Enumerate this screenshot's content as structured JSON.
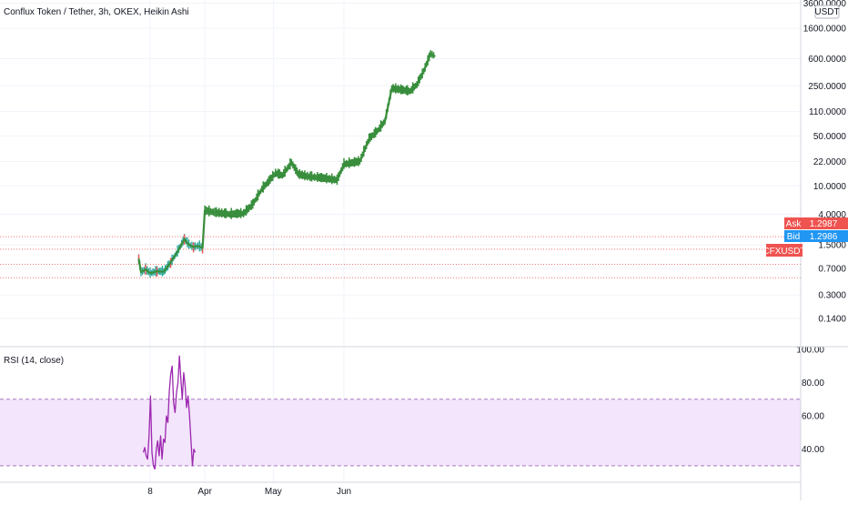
{
  "chart_data": {
    "type": "candlestick",
    "title": "Conflux Token / Tether, 3h, OKEX, Heikin Ashi",
    "symbol": "CFXUSDT",
    "currency_label": "USDT",
    "price_axis": {
      "scale": "log",
      "ticks": [
        "3600.0000",
        "1600.0000",
        "600.0000",
        "250.0000",
        "110.0000",
        "50.0000",
        "22.0000",
        "10.0000",
        "4.0000",
        "1.5000",
        "0.7000",
        "0.3000",
        "0.1400"
      ],
      "tick_values": [
        3600,
        1600,
        600,
        250,
        110,
        50,
        22,
        10,
        4,
        1.5,
        0.7,
        0.3,
        0.14
      ]
    },
    "time_axis": {
      "ticks": [
        "8",
        "Apr",
        "May",
        "Jun"
      ]
    },
    "ask": {
      "label": "Ask",
      "value": "1.2987",
      "color": "#ef5350"
    },
    "bid": {
      "label": "Bid",
      "value": "1.2986",
      "color": "#2196f3"
    },
    "last_price_color": "#ef5350",
    "up_color": "#26a69a",
    "trend_color": "#388e3c",
    "down_color": "#ef5350",
    "horizontal_levels": [
      1.95,
      1.3,
      0.8,
      0.52
    ],
    "price_series": [
      {
        "date": "Mar 3",
        "price": 0.95
      },
      {
        "date": "Mar 4",
        "price": 0.62
      },
      {
        "date": "Mar 6",
        "price": 0.68
      },
      {
        "date": "Mar 8",
        "price": 0.6
      },
      {
        "date": "Mar 11",
        "price": 0.64
      },
      {
        "date": "Mar 14",
        "price": 0.63
      },
      {
        "date": "Mar 17",
        "price": 0.85
      },
      {
        "date": "Mar 20",
        "price": 1.2
      },
      {
        "date": "Mar 23",
        "price": 1.8
      },
      {
        "date": "Mar 25",
        "price": 1.5
      },
      {
        "date": "Mar 27",
        "price": 1.4
      },
      {
        "date": "Mar 29",
        "price": 1.45
      },
      {
        "date": "Mar 31",
        "price": 1.35
      },
      {
        "date": "Apr 1",
        "price": 4.5
      },
      {
        "date": "Apr 6",
        "price": 4.2
      },
      {
        "date": "Apr 12",
        "price": 4.0
      },
      {
        "date": "Apr 18",
        "price": 4.1
      },
      {
        "date": "Apr 22",
        "price": 5.5
      },
      {
        "date": "Apr 26",
        "price": 9.0
      },
      {
        "date": "Apr 29",
        "price": 11.5
      },
      {
        "date": "May 2",
        "price": 15.0
      },
      {
        "date": "May 5",
        "price": 14.0
      },
      {
        "date": "May 9",
        "price": 21.0
      },
      {
        "date": "May 12",
        "price": 14.5
      },
      {
        "date": "May 16",
        "price": 13.5
      },
      {
        "date": "May 21",
        "price": 13.0
      },
      {
        "date": "May 25",
        "price": 12.5
      },
      {
        "date": "May 29",
        "price": 12.0
      },
      {
        "date": "Jun 1",
        "price": 20.0
      },
      {
        "date": "Jun 5",
        "price": 21.0
      },
      {
        "date": "Jun 8",
        "price": 22.0
      },
      {
        "date": "Jun 12",
        "price": 45.0
      },
      {
        "date": "Jun 16",
        "price": 60.0
      },
      {
        "date": "Jun 19",
        "price": 80.0
      },
      {
        "date": "Jun 22",
        "price": 230.0
      },
      {
        "date": "Jun 26",
        "price": 220.0
      },
      {
        "date": "Jun 30",
        "price": 210.0
      },
      {
        "date": "Jul 3",
        "price": 260.0
      },
      {
        "date": "Jul 6",
        "price": 400.0
      },
      {
        "date": "Jul 9",
        "price": 700.0
      },
      {
        "date": "Jul 11",
        "price": 650.0
      }
    ],
    "rsi": {
      "label": "RSI (14, close)",
      "ticks": [
        "100.00",
        "80.00",
        "60.00",
        "40.00"
      ],
      "tick_values": [
        100,
        80,
        60,
        40
      ],
      "range": [
        25,
        100
      ],
      "band": [
        30,
        70
      ],
      "color": "#9c27b0",
      "band_fill": "#f3e5fb",
      "series": [
        38,
        41,
        36,
        34,
        48,
        72,
        38,
        30,
        28,
        40,
        45,
        36,
        48,
        34,
        46,
        44,
        60,
        56,
        75,
        85,
        90,
        68,
        62,
        74,
        80,
        96,
        82,
        70,
        86,
        78,
        65,
        72,
        60,
        45,
        30,
        40,
        38
      ]
    }
  }
}
